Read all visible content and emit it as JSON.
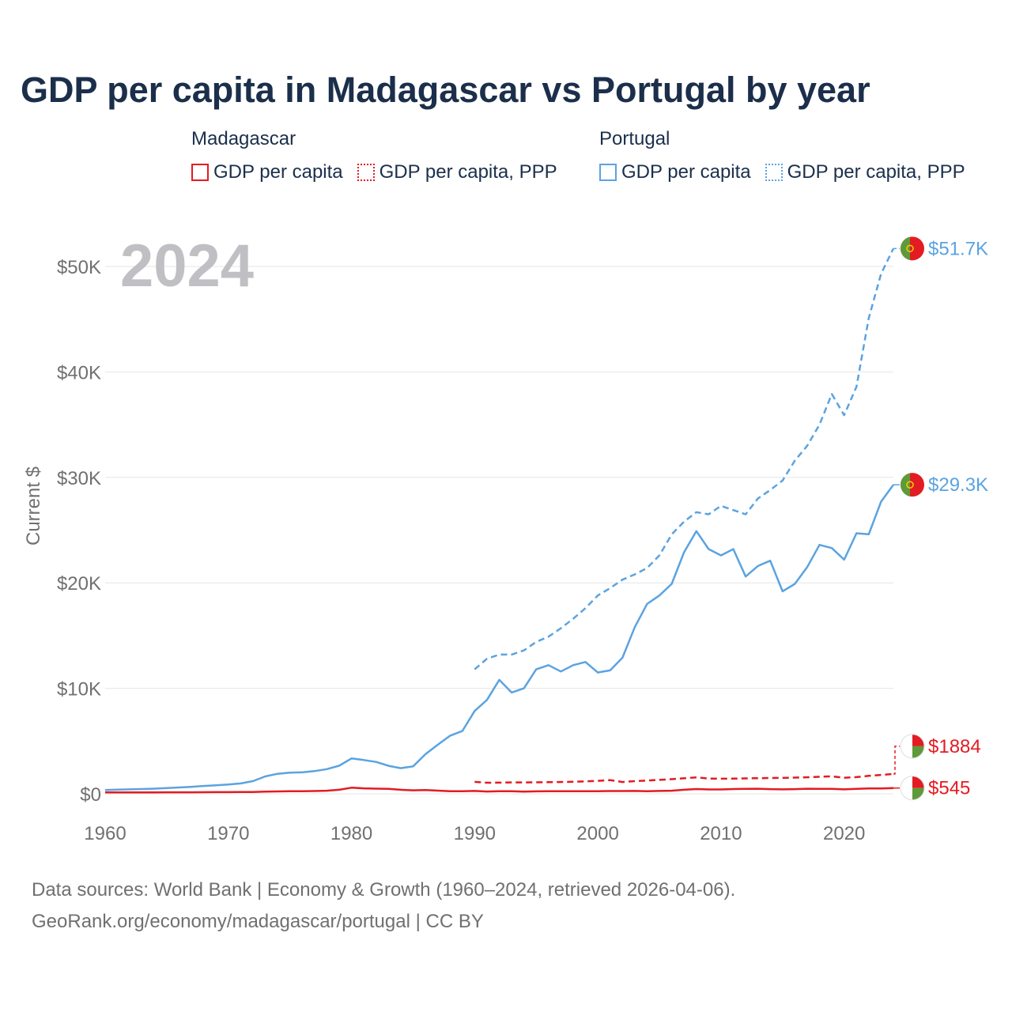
{
  "title": "GDP per capita in Madagascar vs Portugal by year",
  "legend": {
    "groups": [
      {
        "country": "Madagascar",
        "color": "#e31b23",
        "items": [
          "GDP per capita",
          "GDP per capita, PPP"
        ]
      },
      {
        "country": "Portugal",
        "color": "#5ba3e0",
        "items": [
          "GDP per capita",
          "GDP per capita, PPP"
        ]
      }
    ]
  },
  "footer": {
    "line1": "Data sources: World Bank | Economy & Growth (1960–2024, retrieved 2026-04-06).",
    "line2": "GeoRank.org/economy/madagascar/portugal | CC BY"
  },
  "colors": {
    "madagascar": "#e31b23",
    "portugal": "#5ba3e0",
    "grid": "#e6e6e6",
    "axis_text": "#707070",
    "year_watermark": "#c0c0c4"
  },
  "chart_data": {
    "type": "line",
    "title": "GDP per capita in Madagascar vs Portugal by year",
    "ylabel": "Current $",
    "xlabel": "",
    "xlim": [
      1960,
      2024
    ],
    "ylim": [
      0,
      52000
    ],
    "xticks": [
      1960,
      1970,
      1980,
      1990,
      2000,
      2010,
      2020
    ],
    "xtick_labels": [
      "1960",
      "1970",
      "1980",
      "1990",
      "2000",
      "2010",
      "2020"
    ],
    "yticks": [
      0,
      10000,
      20000,
      30000,
      40000,
      50000
    ],
    "ytick_labels": [
      "$0",
      "$10K",
      "$20K",
      "$30K",
      "$40K",
      "$50K"
    ],
    "current_year_label": "2024",
    "grid": true,
    "series": [
      {
        "name": "Portugal GDP per capita, PPP",
        "country": "Portugal",
        "style": "dashed",
        "color": "#5ba3e0",
        "end_label": "$51.7K",
        "x": [
          1990,
          1991,
          1992,
          1993,
          1994,
          1995,
          1996,
          1997,
          1998,
          1999,
          2000,
          2001,
          2002,
          2003,
          2004,
          2005,
          2006,
          2007,
          2008,
          2009,
          2010,
          2011,
          2012,
          2013,
          2014,
          2015,
          2016,
          2017,
          2018,
          2019,
          2020,
          2021,
          2022,
          2023,
          2024
        ],
        "values": [
          11800,
          12800,
          13200,
          13200,
          13600,
          14400,
          14900,
          15700,
          16600,
          17600,
          18800,
          19500,
          20300,
          20800,
          21400,
          22600,
          24600,
          25800,
          26700,
          26500,
          27300,
          26900,
          26500,
          28000,
          28800,
          29700,
          31600,
          33000,
          35000,
          37900,
          35900,
          38600,
          45100,
          49300,
          51700
        ]
      },
      {
        "name": "Portugal GDP per capita",
        "country": "Portugal",
        "style": "solid",
        "color": "#5ba3e0",
        "end_label": "$29.3K",
        "x": [
          1960,
          1961,
          1962,
          1963,
          1964,
          1965,
          1966,
          1967,
          1968,
          1969,
          1970,
          1971,
          1972,
          1973,
          1974,
          1975,
          1976,
          1977,
          1978,
          1979,
          1980,
          1981,
          1982,
          1983,
          1984,
          1985,
          1986,
          1987,
          1988,
          1989,
          1990,
          1991,
          1992,
          1993,
          1994,
          1995,
          1996,
          1997,
          1998,
          1999,
          2000,
          2001,
          2002,
          2003,
          2004,
          2005,
          2006,
          2007,
          2008,
          2009,
          2010,
          2011,
          2012,
          2013,
          2014,
          2015,
          2016,
          2017,
          2018,
          2019,
          2020,
          2021,
          2022,
          2023,
          2024
        ],
        "values": [
          360,
          390,
          420,
          450,
          490,
          540,
          600,
          660,
          740,
          810,
          880,
          980,
          1200,
          1650,
          1900,
          2000,
          2030,
          2150,
          2340,
          2660,
          3350,
          3200,
          3020,
          2650,
          2430,
          2600,
          3750,
          4650,
          5500,
          5950,
          7850,
          8900,
          10800,
          9600,
          10000,
          11800,
          12200,
          11600,
          12200,
          12500,
          11500,
          11700,
          12900,
          15800,
          18000,
          18800,
          19900,
          22900,
          24900,
          23200,
          22600,
          23200,
          20600,
          21600,
          22100,
          19200,
          19900,
          21500,
          23600,
          23300,
          22200,
          24700,
          24600,
          27700,
          29300
        ]
      },
      {
        "name": "Madagascar GDP per capita, PPP",
        "country": "Madagascar",
        "style": "dashed",
        "color": "#e31b23",
        "end_label": "$1884",
        "x": [
          1990,
          1991,
          1992,
          1993,
          1994,
          1995,
          1996,
          1997,
          1998,
          1999,
          2000,
          2001,
          2002,
          2003,
          2004,
          2005,
          2006,
          2007,
          2008,
          2009,
          2010,
          2011,
          2012,
          2013,
          2014,
          2015,
          2016,
          2017,
          2018,
          2019,
          2020,
          2021,
          2022,
          2023,
          2024
        ],
        "values": [
          1130,
          1050,
          1060,
          1080,
          1080,
          1090,
          1100,
          1120,
          1140,
          1180,
          1230,
          1300,
          1120,
          1200,
          1260,
          1320,
          1390,
          1470,
          1560,
          1450,
          1430,
          1440,
          1460,
          1480,
          1500,
          1510,
          1540,
          1570,
          1610,
          1660,
          1520,
          1580,
          1700,
          1790,
          1884
        ]
      },
      {
        "name": "Madagascar GDP per capita",
        "country": "Madagascar",
        "style": "solid",
        "color": "#e31b23",
        "end_label": "$545",
        "x": [
          1960,
          1961,
          1962,
          1963,
          1964,
          1965,
          1966,
          1967,
          1968,
          1969,
          1970,
          1971,
          1972,
          1973,
          1974,
          1975,
          1976,
          1977,
          1978,
          1979,
          1980,
          1981,
          1982,
          1983,
          1984,
          1985,
          1986,
          1987,
          1988,
          1989,
          1990,
          1991,
          1992,
          1993,
          1994,
          1995,
          1996,
          1997,
          1998,
          1999,
          2000,
          2001,
          2002,
          2003,
          2004,
          2005,
          2006,
          2007,
          2008,
          2009,
          2010,
          2011,
          2012,
          2013,
          2014,
          2015,
          2016,
          2017,
          2018,
          2019,
          2020,
          2021,
          2022,
          2023,
          2024
        ],
        "values": [
          130,
          132,
          134,
          135,
          137,
          140,
          143,
          146,
          150,
          155,
          160,
          165,
          175,
          200,
          225,
          240,
          250,
          260,
          290,
          380,
          580,
          520,
          490,
          470,
          380,
          330,
          350,
          300,
          250,
          240,
          270,
          220,
          250,
          240,
          210,
          230,
          240,
          250,
          250,
          240,
          250,
          260,
          260,
          270,
          250,
          270,
          290,
          380,
          450,
          410,
          410,
          450,
          470,
          480,
          440,
          420,
          440,
          480,
          470,
          470,
          420,
          470,
          500,
          500,
          545
        ]
      }
    ]
  }
}
